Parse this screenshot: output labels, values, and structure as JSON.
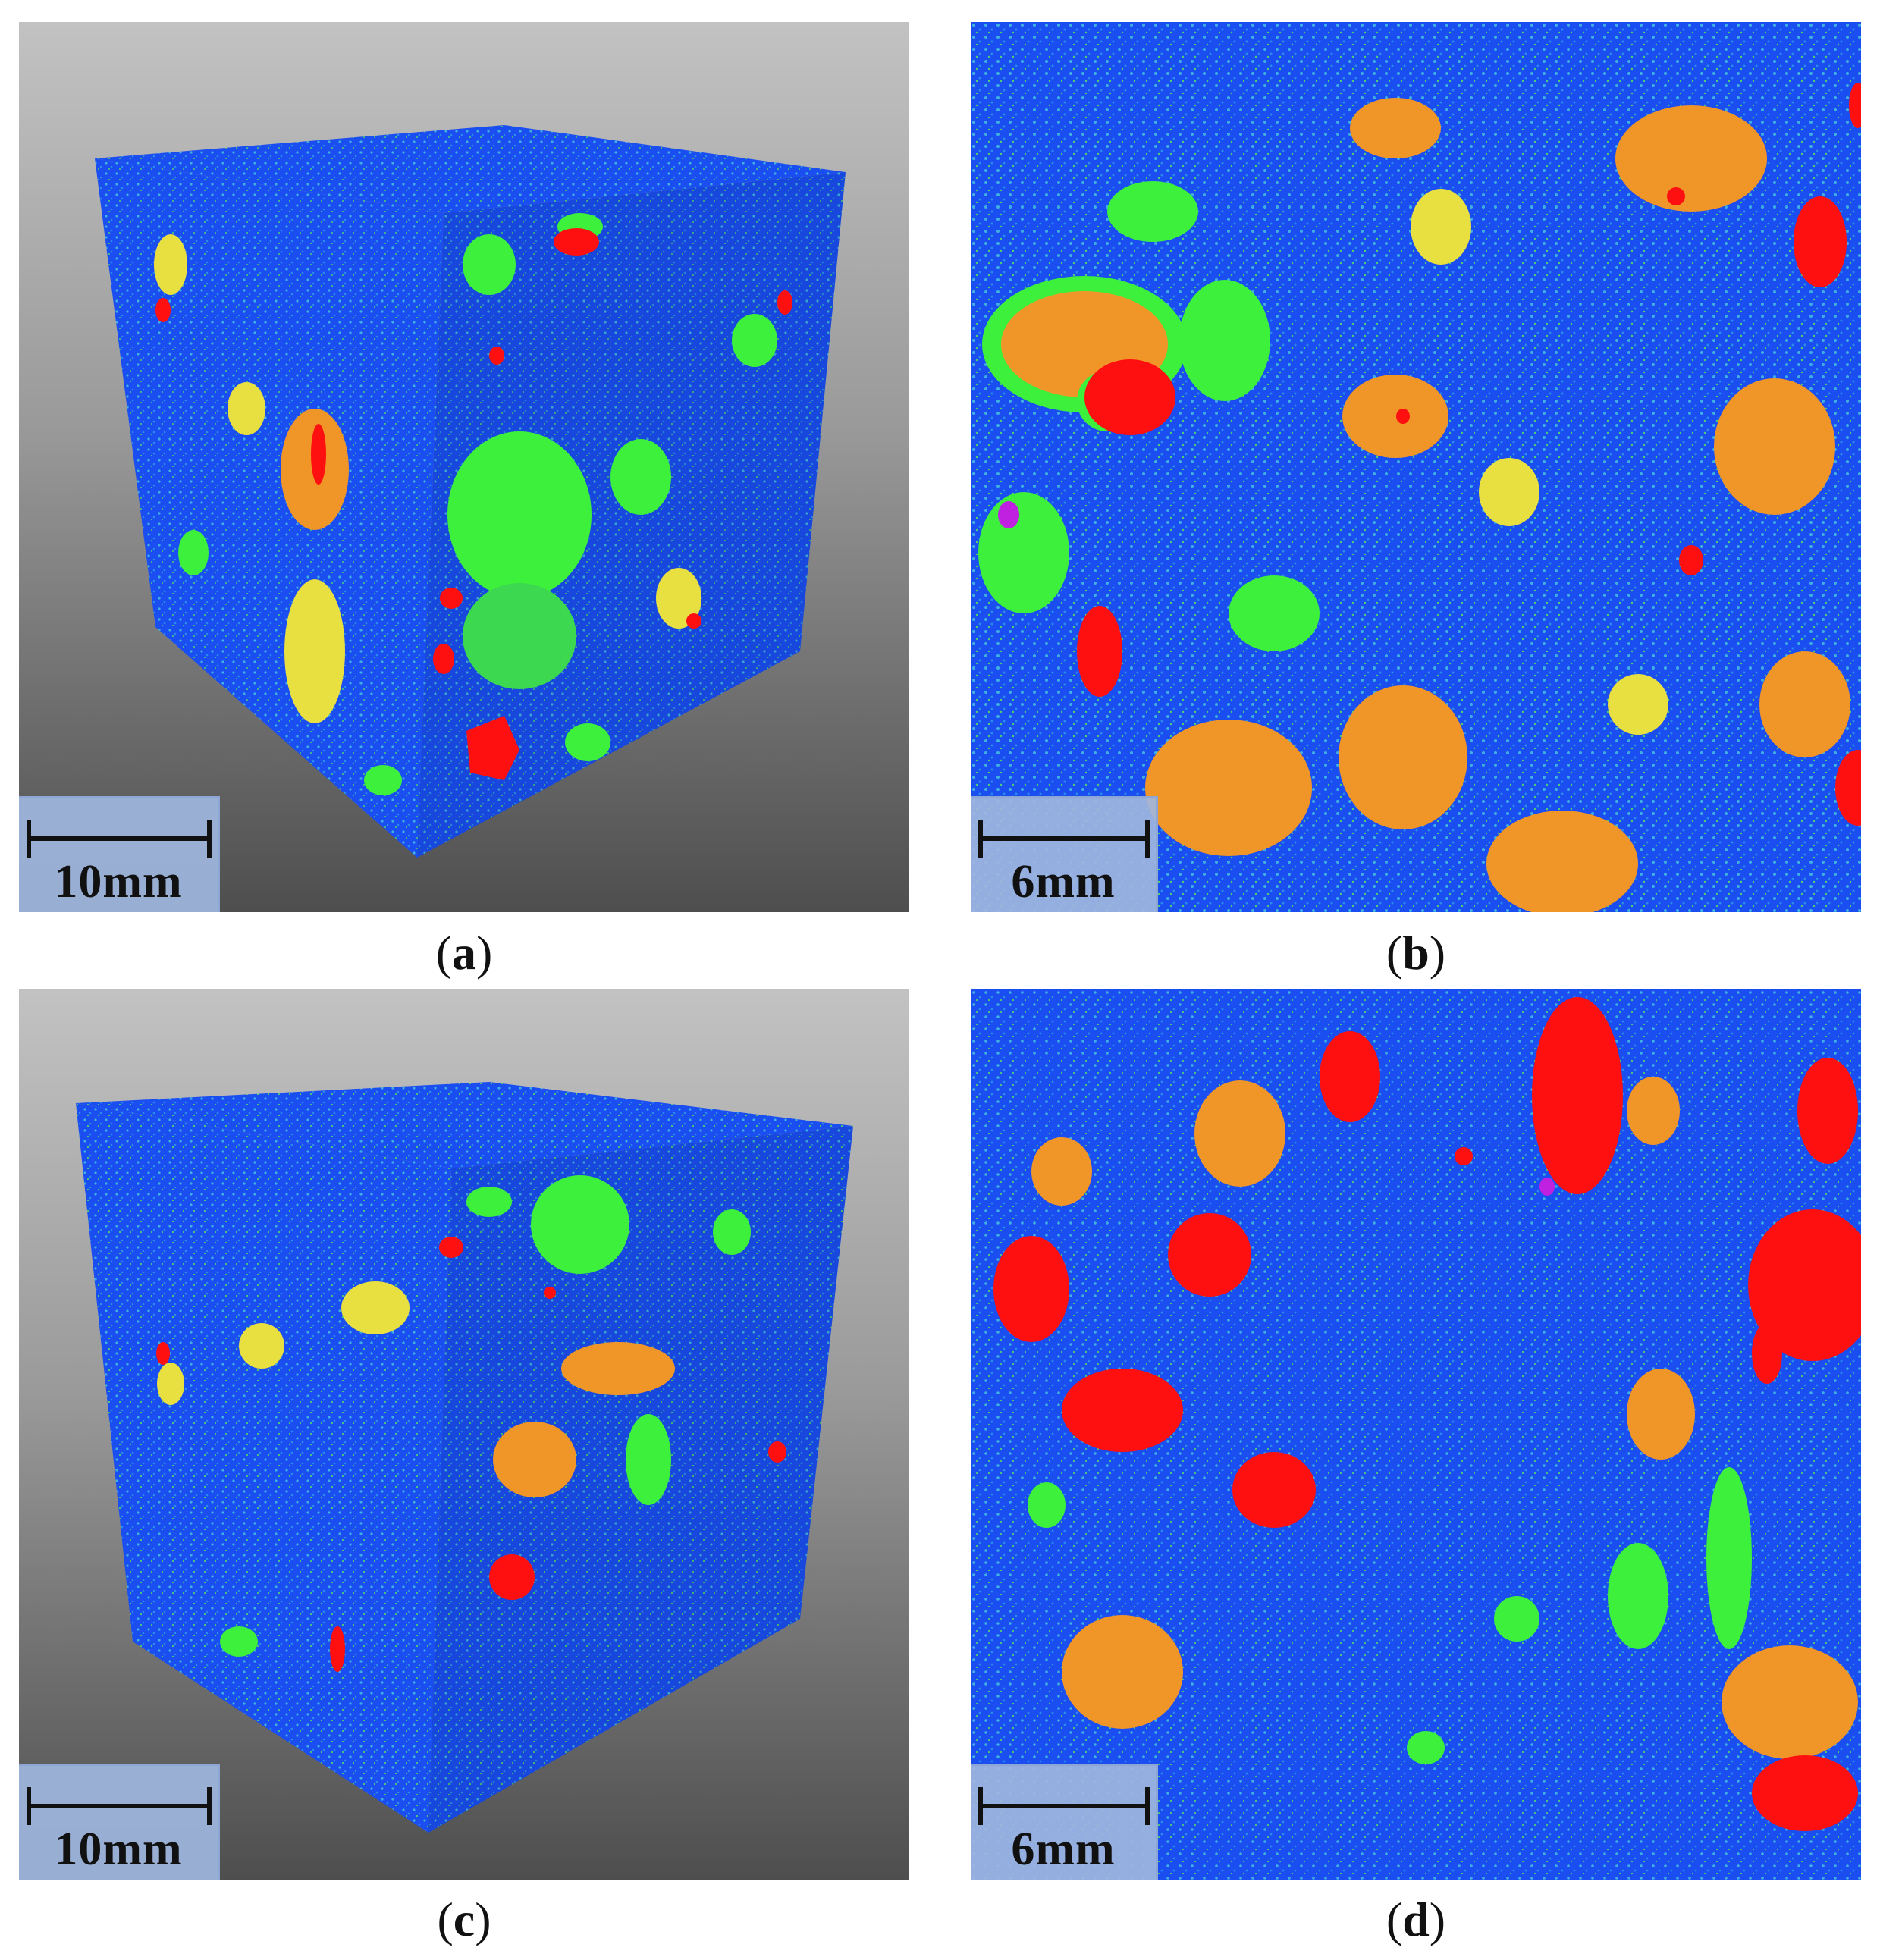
{
  "panels": [
    {
      "id": "a",
      "view": "3d-cube",
      "scale_label": "10mm",
      "caption_letter": "a"
    },
    {
      "id": "b",
      "view": "cross-section",
      "scale_label": "6mm",
      "caption_letter": "b"
    },
    {
      "id": "c",
      "view": "3d-cube",
      "scale_label": "10mm",
      "caption_letter": "c"
    },
    {
      "id": "d",
      "view": "cross-section",
      "scale_label": "6mm",
      "caption_letter": "d"
    }
  ],
  "caption_parens": {
    "open": "(",
    "close": ")"
  },
  "colors": {
    "matrix_blue": "#1a4ef0",
    "cyan": "#3fb0e0",
    "green": "#3cf03c",
    "yellow": "#e8e040",
    "orange": "#f09628",
    "red": "#ff1010",
    "magenta": "#c020e0",
    "cube_background_top": "#c2c2c2",
    "cube_background_bottom": "#4e4e4e",
    "scalebar_fill": "#a0b6de"
  }
}
